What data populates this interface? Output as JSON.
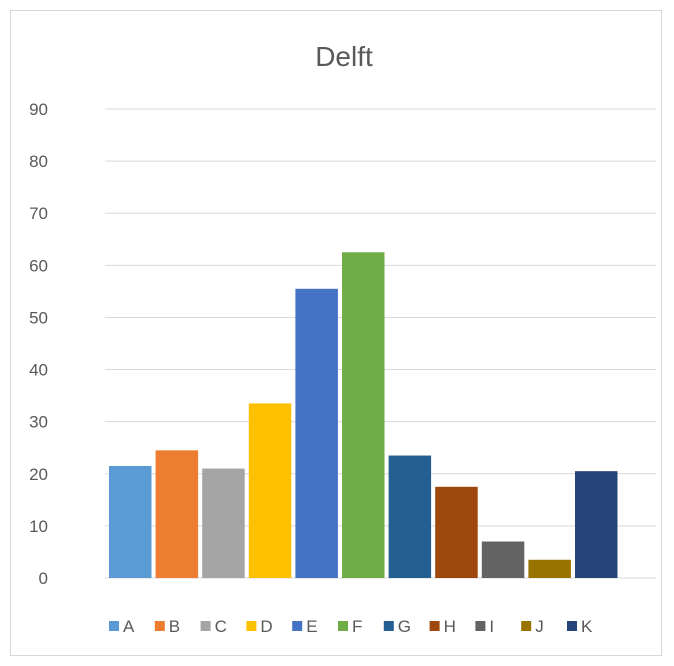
{
  "chart_data": {
    "type": "bar",
    "title": "Delft",
    "xlabel": "",
    "ylabel": "",
    "ylim": [
      0,
      90
    ],
    "yticks": [
      0,
      10,
      20,
      30,
      40,
      50,
      60,
      70,
      80,
      90
    ],
    "grid": true,
    "legend_position": "bottom",
    "series": [
      {
        "name": "A",
        "value": 21.5,
        "color": "#5b9bd5"
      },
      {
        "name": "B",
        "value": 24.5,
        "color": "#ed7d31"
      },
      {
        "name": "C",
        "value": 21,
        "color": "#a5a5a5"
      },
      {
        "name": "D",
        "value": 33.5,
        "color": "#ffc000"
      },
      {
        "name": "E",
        "value": 55.5,
        "color": "#4472c4"
      },
      {
        "name": "F",
        "value": 62.5,
        "color": "#70ad47"
      },
      {
        "name": "G",
        "value": 23.5,
        "color": "#255e91"
      },
      {
        "name": "H",
        "value": 17.5,
        "color": "#9e480e"
      },
      {
        "name": "I",
        "value": 7,
        "color": "#636363"
      },
      {
        "name": "J",
        "value": 3.5,
        "color": "#997300"
      },
      {
        "name": "K",
        "value": 20.5,
        "color": "#264478"
      }
    ]
  }
}
